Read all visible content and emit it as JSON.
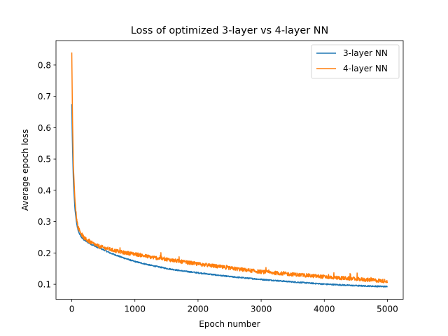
{
  "chart_data": {
    "type": "line",
    "title": "Loss of optimized 3-layer vs 4-layer NN",
    "xlabel": "Epoch number",
    "ylabel": "Average epoch loss",
    "xlim": [
      -250,
      5250
    ],
    "ylim": [
      0.052,
      0.878
    ],
    "xticks": [
      0,
      1000,
      2000,
      3000,
      4000,
      5000
    ],
    "yticks": [
      0.1,
      0.2,
      0.3,
      0.4,
      0.5,
      0.6,
      0.7,
      0.8
    ],
    "xtick_labels": [
      "0",
      "1000",
      "2000",
      "3000",
      "4000",
      "5000"
    ],
    "ytick_labels": [
      "0.1",
      "0.2",
      "0.3",
      "0.4",
      "0.5",
      "0.6",
      "0.7",
      "0.8"
    ],
    "grid": false,
    "legend_position": "upper right",
    "series": [
      {
        "name": "3-layer NN",
        "color": "#1f77b4",
        "x": [
          0,
          10,
          25,
          50,
          75,
          100,
          150,
          200,
          300,
          400,
          500,
          600,
          800,
          1000,
          1250,
          1500,
          1750,
          2000,
          2500,
          3000,
          3500,
          4000,
          4500,
          5000
        ],
        "y": [
          0.675,
          0.55,
          0.43,
          0.34,
          0.295,
          0.27,
          0.25,
          0.24,
          0.228,
          0.218,
          0.21,
          0.2,
          0.185,
          0.172,
          0.16,
          0.15,
          0.142,
          0.136,
          0.124,
          0.115,
          0.107,
          0.1,
          0.095,
          0.092
        ]
      },
      {
        "name": "4-layer NN",
        "color": "#ff7f0e",
        "x": [
          0,
          10,
          25,
          50,
          75,
          100,
          150,
          200,
          300,
          400,
          500,
          600,
          700,
          800,
          1000,
          1250,
          1500,
          1750,
          2000,
          2500,
          3000,
          3500,
          4000,
          4500,
          5000
        ],
        "y": [
          0.84,
          0.65,
          0.48,
          0.37,
          0.31,
          0.28,
          0.26,
          0.245,
          0.232,
          0.222,
          0.215,
          0.21,
          0.205,
          0.2,
          0.195,
          0.185,
          0.178,
          0.17,
          0.163,
          0.15,
          0.138,
          0.13,
          0.122,
          0.115,
          0.108
        ]
      }
    ]
  }
}
